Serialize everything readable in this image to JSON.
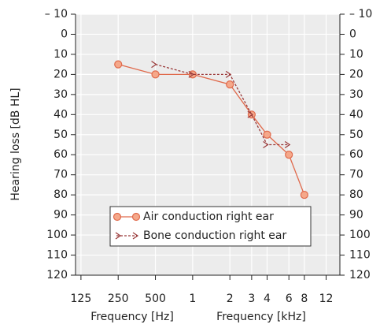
{
  "chart_data": {
    "type": "line",
    "y_label": "Hearing loss [dB HL]",
    "x_label_hz": "Frequency [Hz]",
    "x_label_khz": "Frequency [kHz]",
    "x_log": true,
    "y_inverted": true,
    "grid": true,
    "legend": "lower right",
    "xlim": [
      113,
      15500
    ],
    "ylim": [
      -10,
      120
    ],
    "xticks": [
      125,
      250,
      500,
      {
        "value": 1000,
        "label": "1"
      },
      {
        "value": 2000,
        "label": "2"
      },
      {
        "value": 3000,
        "label": "3"
      },
      {
        "value": 4000,
        "label": "4"
      },
      {
        "value": 6000,
        "label": "6"
      },
      {
        "value": 8000,
        "label": "8"
      },
      {
        "value": 12000,
        "label": "12"
      }
    ],
    "yticks": [
      {
        "value": -10,
        "label": "– 10"
      },
      0,
      10,
      20,
      30,
      40,
      50,
      60,
      70,
      80,
      90,
      100,
      110,
      120
    ],
    "series": [
      {
        "name": "Air conduction right ear",
        "color": "#e06a4c",
        "marker": "circle",
        "x": [
          250,
          500,
          1000,
          2000,
          3000,
          4000,
          6000,
          8000
        ],
        "values": [
          15,
          20,
          20,
          25,
          40,
          50,
          60,
          80
        ]
      },
      {
        "name": "Bone conduction right ear",
        "color": "#9a3a3a",
        "marker": "chevron",
        "dashed": true,
        "x": [
          500,
          1000,
          2000,
          3000,
          4000,
          6000
        ],
        "values": [
          15,
          20,
          20,
          40,
          55,
          55
        ]
      }
    ]
  }
}
